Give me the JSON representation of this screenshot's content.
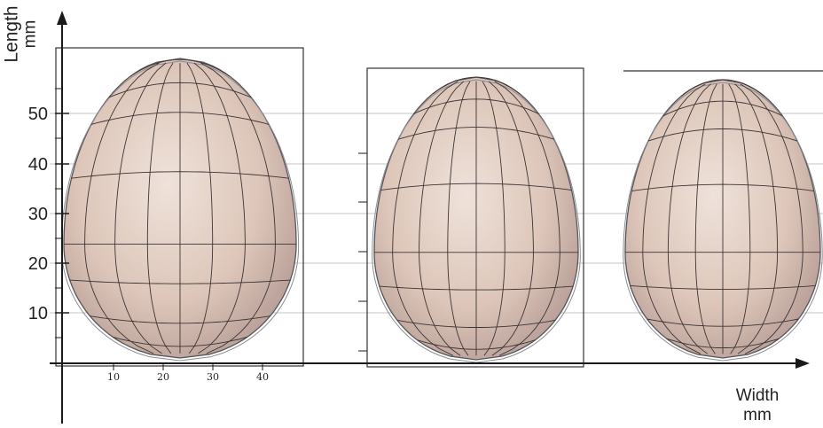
{
  "axes": {
    "y_title_line1": "Length",
    "y_title_line2": "mm",
    "x_title_line1": "Width",
    "x_title_line2": "mm",
    "y_ticks": [
      "50",
      "40",
      "30",
      "20",
      "10"
    ],
    "x_ticks": [
      "10",
      "20",
      "30",
      "40"
    ]
  },
  "eggs": [
    {
      "name": "egg-left"
    },
    {
      "name": "egg-middle"
    },
    {
      "name": "egg-right"
    }
  ],
  "colors": {
    "egg_fill": "#d9c0b2",
    "egg_shadow": "#a98e87",
    "mesh": "#3b3436",
    "axis": "#1a1a1a",
    "gridline": "#bdbdbd"
  }
}
